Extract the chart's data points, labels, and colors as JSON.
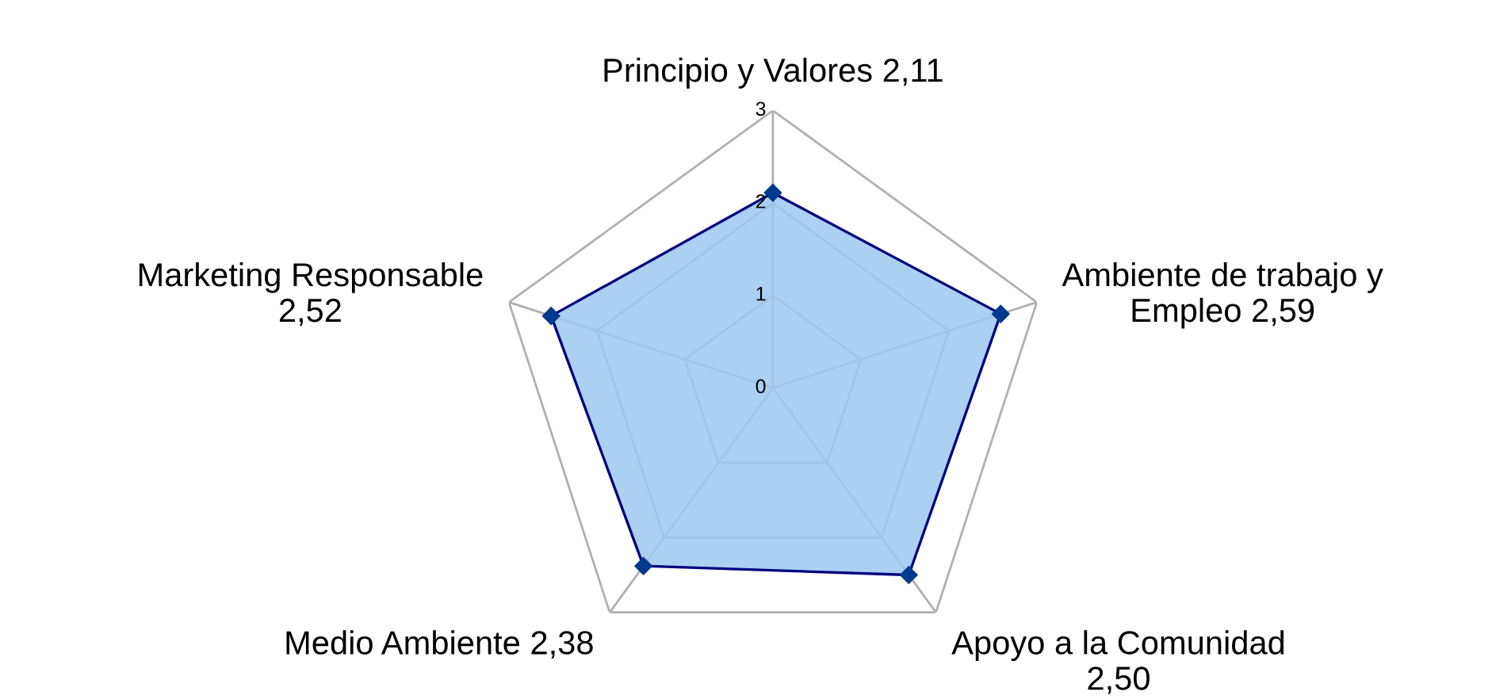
{
  "chart_data": {
    "type": "radar",
    "categories": [
      "Principio y Valores 2,11",
      "Ambiente de trabajo y\nEmpleo 2,59",
      "Apoyo a la Comunidad\n2,50",
      "Medio Ambiente 2,38",
      "Marketing Responsable\n2,52"
    ],
    "series": [
      {
        "color": "#9cc8ee",
        "values": [
          2.11,
          2.59,
          2.5,
          2.38,
          2.52
        ]
      }
    ],
    "ylim": [
      0,
      3
    ],
    "yticks": [
      0,
      1,
      2,
      3
    ],
    "grid": true,
    "marker": "diamond"
  }
}
